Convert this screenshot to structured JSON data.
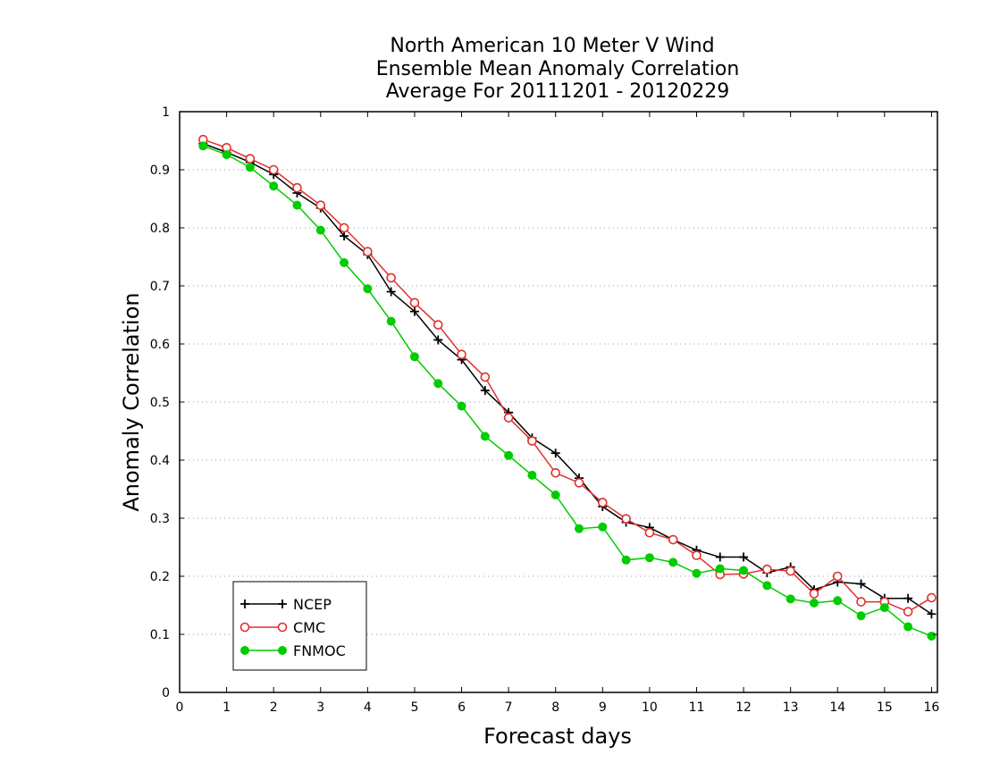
{
  "chart_data": {
    "type": "line",
    "title_lines": [
      "North American 10 Meter V Wind",
      "Ensemble Mean Anomaly Correlation",
      "Average For 20111201 - 20120229"
    ],
    "xlabel": "Forecast days",
    "ylabel": "Anomaly Correlation",
    "xlim": [
      0,
      16.125
    ],
    "ylim": [
      0,
      1
    ],
    "x_ticks": [
      0,
      1,
      2,
      3,
      4,
      5,
      6,
      7,
      8,
      9,
      10,
      11,
      12,
      13,
      14,
      15,
      16
    ],
    "y_ticks": [
      0,
      0.1,
      0.2,
      0.3,
      0.4,
      0.5,
      0.6,
      0.7,
      0.8,
      0.9,
      1
    ],
    "y_tick_labels": [
      "0",
      "0.1",
      "0.2",
      "0.3",
      "0.4",
      "0.5",
      "0.6",
      "0.7",
      "0.8",
      "0.9",
      "1"
    ],
    "grid": "horizontal dotted",
    "legend_position": "bottom-left",
    "x": [
      0.5,
      1,
      1.5,
      2,
      2.5,
      3,
      3.5,
      4,
      4.5,
      5,
      5.5,
      6,
      6.5,
      7,
      7.5,
      8,
      8.5,
      9,
      9.5,
      10,
      10.5,
      11,
      11.5,
      12,
      12.5,
      13,
      13.5,
      14,
      14.5,
      15,
      15.5,
      16
    ],
    "series": [
      {
        "name": "NCEP",
        "color": "#000000",
        "marker": "plus",
        "values": [
          0.945,
          0.93,
          0.913,
          0.892,
          0.86,
          0.834,
          0.786,
          0.754,
          0.69,
          0.656,
          0.607,
          0.573,
          0.52,
          0.482,
          0.438,
          0.412,
          0.369,
          0.32,
          0.293,
          0.284,
          0.263,
          0.245,
          0.233,
          0.233,
          0.206,
          0.216,
          0.177,
          0.19,
          0.187,
          0.162,
          0.162,
          0.135
        ]
      },
      {
        "name": "CMC",
        "color": "#e03030",
        "marker": "open-circle",
        "values": [
          0.952,
          0.938,
          0.919,
          0.9,
          0.869,
          0.839,
          0.8,
          0.759,
          0.714,
          0.671,
          0.633,
          0.582,
          0.543,
          0.473,
          0.433,
          0.378,
          0.361,
          0.327,
          0.299,
          0.275,
          0.263,
          0.236,
          0.203,
          0.204,
          0.212,
          0.209,
          0.17,
          0.2,
          0.156,
          0.156,
          0.139,
          0.163
        ]
      },
      {
        "name": "FNMOC",
        "color": "#00cc00",
        "marker": "filled-circle",
        "values": [
          0.941,
          0.926,
          0.904,
          0.872,
          0.839,
          0.796,
          0.74,
          0.695,
          0.639,
          0.578,
          0.532,
          0.493,
          0.441,
          0.408,
          0.374,
          0.34,
          0.282,
          0.285,
          0.228,
          0.232,
          0.224,
          0.205,
          0.213,
          0.21,
          0.184,
          0.161,
          0.154,
          0.158,
          0.132,
          0.146,
          0.113,
          0.097
        ]
      }
    ]
  }
}
